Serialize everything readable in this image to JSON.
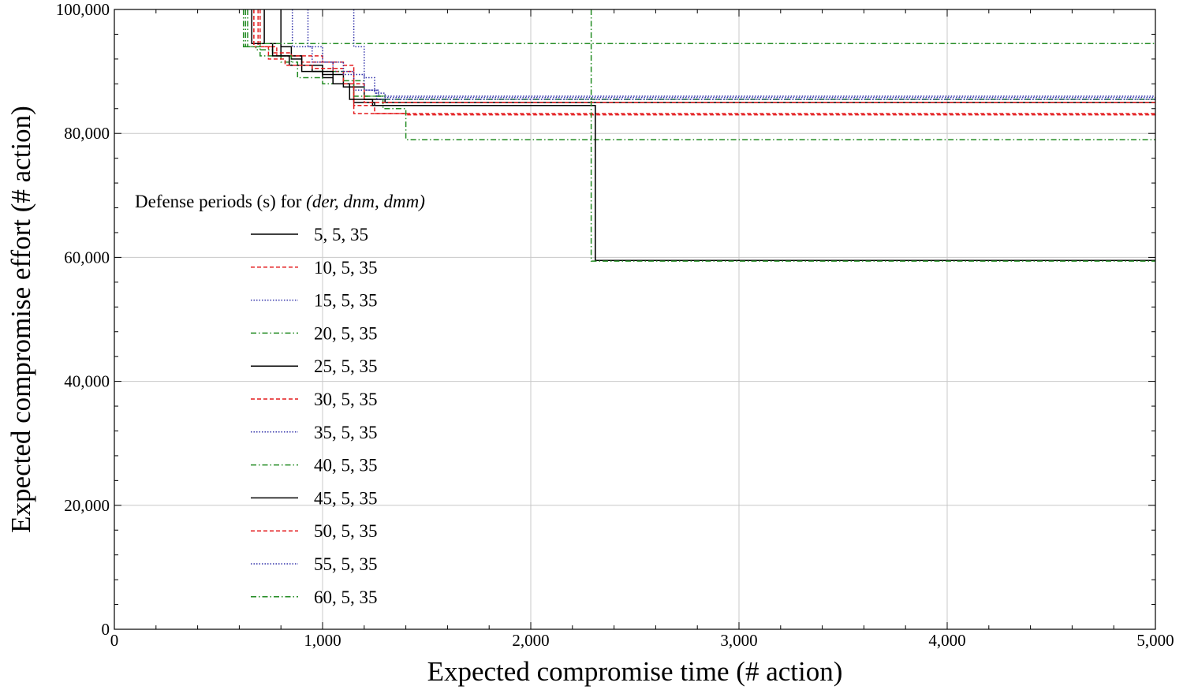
{
  "chart_data": {
    "type": "line",
    "title": "",
    "xlabel": "Expected compromise time (# action)",
    "ylabel": "Expected compromise effort (# action)",
    "xlim": [
      0,
      5000
    ],
    "ylim": [
      0,
      100000
    ],
    "grid": true,
    "x_ticks": [
      0,
      1000,
      2000,
      3000,
      4000,
      5000
    ],
    "x_tick_labels": [
      "0",
      "1,000",
      "2,000",
      "3,000",
      "4,000",
      "5,000"
    ],
    "y_ticks": [
      0,
      20000,
      40000,
      60000,
      80000,
      100000
    ],
    "y_tick_labels": [
      "0",
      "20,000",
      "40,000",
      "60,000",
      "80,000",
      "100,000"
    ],
    "legend": {
      "title_prefix": "Defense periods (s) for ",
      "title_vars": "(der, dnm, dmm)",
      "placement": "center-left"
    },
    "series": [
      {
        "name": "5, 5, 35",
        "color": "#000000",
        "style": "solid",
        "points": [
          [
            800,
            100000
          ],
          [
            800,
            94000
          ],
          [
            850,
            94000
          ],
          [
            850,
            92000
          ],
          [
            900,
            92000
          ],
          [
            900,
            90000
          ],
          [
            1000,
            90000
          ],
          [
            1000,
            89000
          ],
          [
            1050,
            89000
          ],
          [
            1050,
            88000
          ],
          [
            1150,
            88000
          ],
          [
            1150,
            85000
          ],
          [
            1250,
            85000
          ],
          [
            1250,
            84500
          ],
          [
            2310,
            84500
          ],
          [
            2310,
            59500
          ],
          [
            5000,
            59500
          ]
        ]
      },
      {
        "name": "10, 5, 35",
        "color": "#e31a1c",
        "style": "dashed",
        "points": [
          [
            690,
            100000
          ],
          [
            690,
            94000
          ],
          [
            780,
            94000
          ],
          [
            780,
            92500
          ],
          [
            900,
            92500
          ],
          [
            900,
            91500
          ],
          [
            1050,
            91500
          ],
          [
            1050,
            90000
          ],
          [
            1150,
            90000
          ],
          [
            1150,
            84500
          ],
          [
            1250,
            84500
          ],
          [
            1250,
            83200
          ],
          [
            5000,
            83200
          ]
        ]
      },
      {
        "name": "15, 5, 35",
        "color": "#3333aa",
        "style": "dotted",
        "points": [
          [
            855,
            100000
          ],
          [
            855,
            94000
          ],
          [
            950,
            94000
          ],
          [
            950,
            91500
          ],
          [
            1050,
            91500
          ],
          [
            1050,
            90000
          ],
          [
            1150,
            90000
          ],
          [
            1150,
            87000
          ],
          [
            1270,
            87000
          ],
          [
            1270,
            86000
          ],
          [
            5000,
            86000
          ]
        ]
      },
      {
        "name": "20, 5, 35",
        "color": "#228b22",
        "style": "dashdot",
        "points": [
          [
            630,
            100000
          ],
          [
            630,
            94000
          ],
          [
            700,
            94000
          ],
          [
            700,
            92500
          ],
          [
            800,
            92500
          ],
          [
            800,
            91500
          ],
          [
            880,
            91500
          ],
          [
            880,
            89000
          ],
          [
            1000,
            89000
          ],
          [
            1000,
            88000
          ],
          [
            1150,
            88000
          ],
          [
            1150,
            86000
          ],
          [
            1300,
            86000
          ],
          [
            1300,
            85500
          ],
          [
            5000,
            85500
          ]
        ]
      },
      {
        "name": "25, 5, 35",
        "color": "#000000",
        "style": "solid",
        "points": [
          [
            720,
            100000
          ],
          [
            720,
            94500
          ],
          [
            800,
            94500
          ],
          [
            800,
            92500
          ],
          [
            900,
            92500
          ],
          [
            900,
            91000
          ],
          [
            1000,
            91000
          ],
          [
            1000,
            89500
          ],
          [
            1100,
            89500
          ],
          [
            1100,
            87500
          ],
          [
            1200,
            87500
          ],
          [
            1200,
            85500
          ],
          [
            1300,
            85500
          ],
          [
            1300,
            85000
          ],
          [
            5000,
            85000
          ]
        ]
      },
      {
        "name": "30, 5, 35",
        "color": "#e31a1c",
        "style": "dashed",
        "points": [
          [
            700,
            100000
          ],
          [
            700,
            94000
          ],
          [
            760,
            94000
          ],
          [
            760,
            93000
          ],
          [
            850,
            93000
          ],
          [
            850,
            92500
          ],
          [
            1000,
            92500
          ],
          [
            1000,
            91500
          ],
          [
            1100,
            91500
          ],
          [
            1100,
            91000
          ],
          [
            1150,
            91000
          ],
          [
            1150,
            83200
          ],
          [
            1400,
            83200
          ],
          [
            1400,
            83000
          ],
          [
            5000,
            83000
          ]
        ]
      },
      {
        "name": "35, 5, 35",
        "color": "#3333aa",
        "style": "dotted",
        "points": [
          [
            1150,
            100000
          ],
          [
            1150,
            94000
          ],
          [
            1200,
            94000
          ],
          [
            1200,
            89000
          ],
          [
            1250,
            89000
          ],
          [
            1250,
            86500
          ],
          [
            1300,
            86500
          ],
          [
            1300,
            85800
          ],
          [
            5000,
            85800
          ]
        ]
      },
      {
        "name": "40, 5, 35",
        "color": "#228b22",
        "style": "dashdot",
        "points": [
          [
            620,
            100000
          ],
          [
            620,
            94000
          ],
          [
            680,
            94000
          ],
          [
            680,
            93500
          ],
          [
            760,
            93500
          ],
          [
            760,
            92500
          ],
          [
            850,
            92500
          ],
          [
            850,
            91000
          ],
          [
            950,
            91000
          ],
          [
            950,
            90000
          ],
          [
            1100,
            90000
          ],
          [
            1100,
            88500
          ],
          [
            1200,
            88500
          ],
          [
            1200,
            86000
          ],
          [
            1290,
            86000
          ],
          [
            1290,
            84000
          ],
          [
            1400,
            84000
          ],
          [
            1400,
            79000
          ],
          [
            5000,
            79000
          ]
        ]
      },
      {
        "name": "45, 5, 35",
        "color": "#000000",
        "style": "solid",
        "points": [
          [
            660,
            100000
          ],
          [
            660,
            94500
          ],
          [
            760,
            94500
          ],
          [
            760,
            92500
          ],
          [
            840,
            92500
          ],
          [
            840,
            91000
          ],
          [
            950,
            91000
          ],
          [
            950,
            90000
          ],
          [
            1050,
            90000
          ],
          [
            1050,
            88000
          ],
          [
            1130,
            88000
          ],
          [
            1130,
            85500
          ],
          [
            1240,
            85500
          ],
          [
            1240,
            84500
          ],
          [
            2310,
            84500
          ],
          [
            2310,
            59500
          ],
          [
            5000,
            59500
          ]
        ]
      },
      {
        "name": "50, 5, 35",
        "color": "#e31a1c",
        "style": "dashed",
        "points": [
          [
            670,
            100000
          ],
          [
            670,
            94000
          ],
          [
            740,
            94000
          ],
          [
            740,
            92000
          ],
          [
            820,
            92000
          ],
          [
            820,
            91000
          ],
          [
            950,
            91000
          ],
          [
            950,
            90500
          ],
          [
            1100,
            90500
          ],
          [
            1100,
            88000
          ],
          [
            1200,
            88000
          ],
          [
            1200,
            85000
          ],
          [
            5000,
            85000
          ]
        ]
      },
      {
        "name": "55, 5, 35",
        "color": "#3333aa",
        "style": "dotted",
        "points": [
          [
            930,
            100000
          ],
          [
            930,
            94000
          ],
          [
            1000,
            94000
          ],
          [
            1000,
            91500
          ],
          [
            1100,
            91500
          ],
          [
            1100,
            89500
          ],
          [
            1200,
            89500
          ],
          [
            1200,
            87000
          ],
          [
            1260,
            87000
          ],
          [
            1260,
            85500
          ],
          [
            5000,
            85500
          ]
        ]
      },
      {
        "name": "60, 5, 35",
        "color": "#228b22",
        "style": "dashdot",
        "points": [
          [
            640,
            100000
          ],
          [
            640,
            94000
          ],
          [
            700,
            94000
          ],
          [
            700,
            94500
          ],
          [
            5000,
            94500
          ]
        ]
      },
      {
        "name": "",
        "color": "#228b22",
        "style": "dashdot",
        "in_legend": false,
        "points": [
          [
            2290,
            100000
          ],
          [
            2290,
            82500
          ],
          [
            2290,
            59400
          ],
          [
            5000,
            59400
          ]
        ]
      }
    ]
  }
}
